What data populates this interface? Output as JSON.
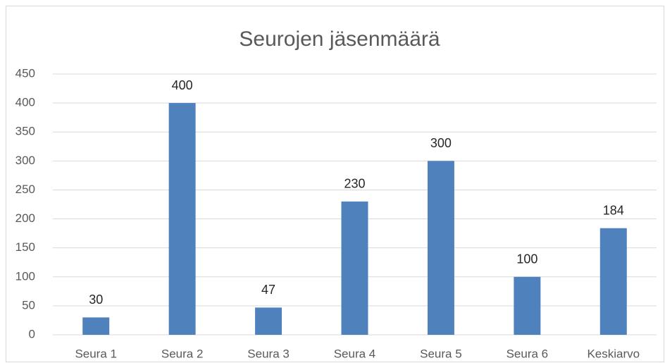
{
  "chart_data": {
    "type": "bar",
    "title": "Seurojen jäsenmäärä",
    "categories": [
      "Seura 1",
      "Seura 2",
      "Seura 3",
      "Seura 4",
      "Seura 5",
      "Seura 6",
      "Keskiarvo"
    ],
    "values": [
      30,
      400,
      47,
      230,
      300,
      100,
      184
    ],
    "color": "#4f81bd",
    "ylim": [
      0,
      450
    ],
    "yticks": [
      0,
      50,
      100,
      150,
      200,
      250,
      300,
      350,
      400,
      450
    ],
    "grid": true,
    "data_labels": true
  }
}
